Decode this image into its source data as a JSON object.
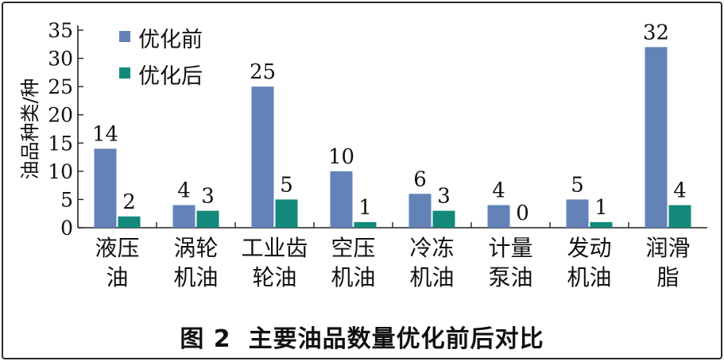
{
  "caption": {
    "number": "图 2",
    "text": "主要油品数量优化前后对比"
  },
  "colors": {
    "before": "#6382b8",
    "after": "#12897a",
    "axis": "#222222",
    "text": "#111111"
  },
  "chart_data": {
    "type": "bar",
    "title": "",
    "xlabel": "",
    "ylabel": "油品种类/种",
    "ylim": [
      0,
      35
    ],
    "yticks": [
      0,
      5,
      10,
      15,
      20,
      25,
      30,
      35
    ],
    "grid": false,
    "legend_position": "top-left",
    "categories": [
      [
        "液压",
        "油"
      ],
      [
        "涡轮",
        "机油"
      ],
      [
        "工业齿",
        "轮油"
      ],
      [
        "空压",
        "机油"
      ],
      [
        "冷冻",
        "机油"
      ],
      [
        "计量",
        "泵油"
      ],
      [
        "发动",
        "机油"
      ],
      [
        "润滑",
        "脂"
      ]
    ],
    "series": [
      {
        "name": "优化前",
        "values": [
          14,
          4,
          25,
          10,
          6,
          4,
          5,
          32
        ]
      },
      {
        "name": "优化后",
        "values": [
          2,
          3,
          5,
          1,
          3,
          0,
          1,
          4
        ]
      }
    ]
  }
}
